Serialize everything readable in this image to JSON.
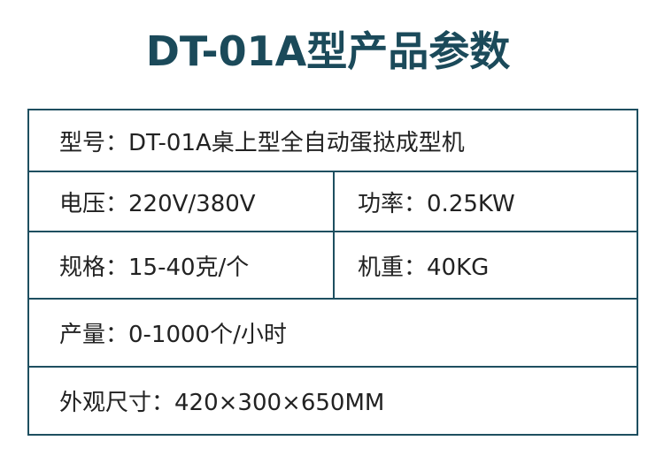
{
  "title": "DT-01A型产品参数",
  "rows": {
    "model": "型号：DT-01A桌上型全自动蛋挞成型机",
    "voltage": "电压：220V/380V",
    "power": "功率：0.25KW",
    "spec": "规格：15-40克/个",
    "weight": "机重：40KG",
    "output": "产量：0-1000个/小时",
    "size": "外观尺寸：420×300×650MM"
  }
}
